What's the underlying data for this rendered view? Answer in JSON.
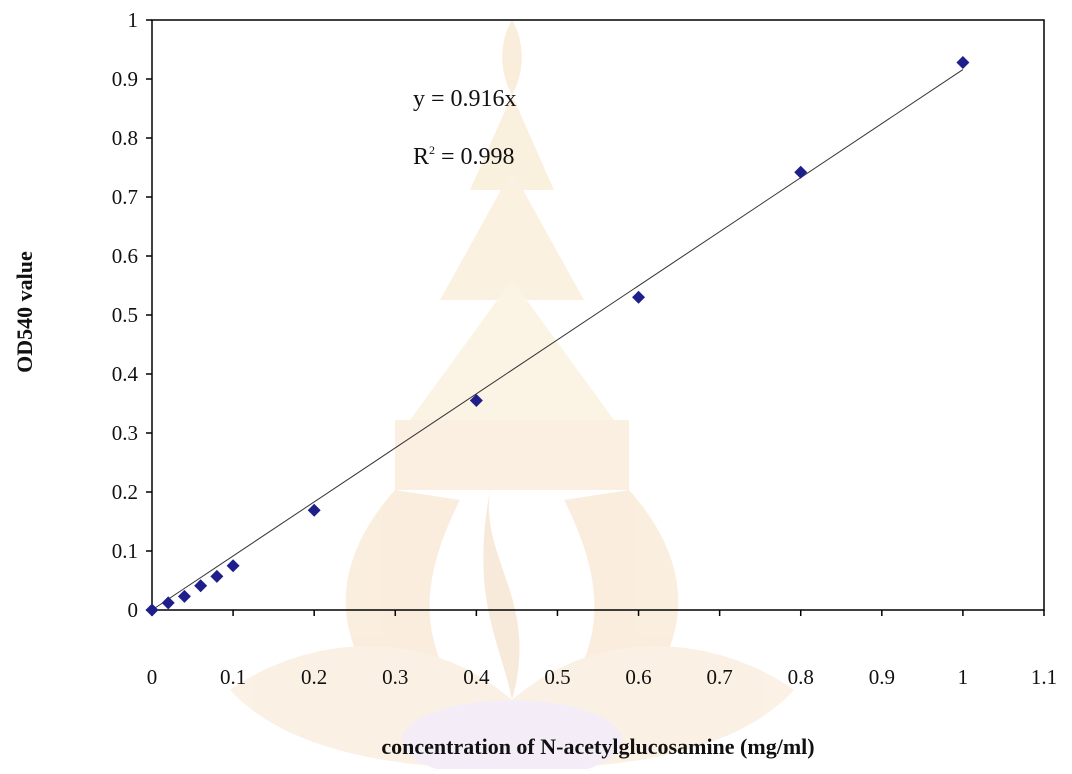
{
  "chart_data": {
    "type": "scatter",
    "xlabel": "concentration of N-acetylglucosamine (mg/ml)",
    "ylabel": "OD540 value",
    "xlim": [
      0,
      1.1
    ],
    "ylim": [
      0,
      1
    ],
    "xticks": [
      0,
      0.1,
      0.2,
      0.3,
      0.4,
      0.5,
      0.6,
      0.7,
      0.8,
      0.9,
      1,
      1.1
    ],
    "xtick_labels": [
      "0",
      "0.1",
      "0.2",
      "0.3",
      "0.4",
      "0.5",
      "0.6",
      "0.7",
      "0.8",
      "0.9",
      "1",
      "1.1"
    ],
    "yticks": [
      0,
      0.1,
      0.2,
      0.3,
      0.4,
      0.5,
      0.6,
      0.7,
      0.8,
      0.9,
      1
    ],
    "ytick_labels": [
      "0",
      "0.1",
      "0.2",
      "0.3",
      "0.4",
      "0.5",
      "0.6",
      "0.7",
      "0.8",
      "0.9",
      "1"
    ],
    "grid": false,
    "series": [
      {
        "marker": "diamond",
        "color": "#1f1f8c",
        "points": [
          {
            "x": 0,
            "y": 0
          },
          {
            "x": 0.02,
            "y": 0.012
          },
          {
            "x": 0.04,
            "y": 0.023
          },
          {
            "x": 0.06,
            "y": 0.041
          },
          {
            "x": 0.08,
            "y": 0.057
          },
          {
            "x": 0.1,
            "y": 0.075
          },
          {
            "x": 0.2,
            "y": 0.169
          },
          {
            "x": 0.4,
            "y": 0.355
          },
          {
            "x": 0.6,
            "y": 0.53
          },
          {
            "x": 0.8,
            "y": 0.742
          },
          {
            "x": 1.0,
            "y": 0.928
          }
        ]
      }
    ],
    "trendline": {
      "type": "linear",
      "slope": 0.916,
      "intercept": 0,
      "x_range": [
        0,
        1.0
      ],
      "color": "#333333"
    },
    "annotations": {
      "equation": "y = 0.916x",
      "r2_prefix": "R",
      "r2_sup": "2",
      "r2_value": " = 0.998"
    },
    "watermark": "emblem"
  }
}
